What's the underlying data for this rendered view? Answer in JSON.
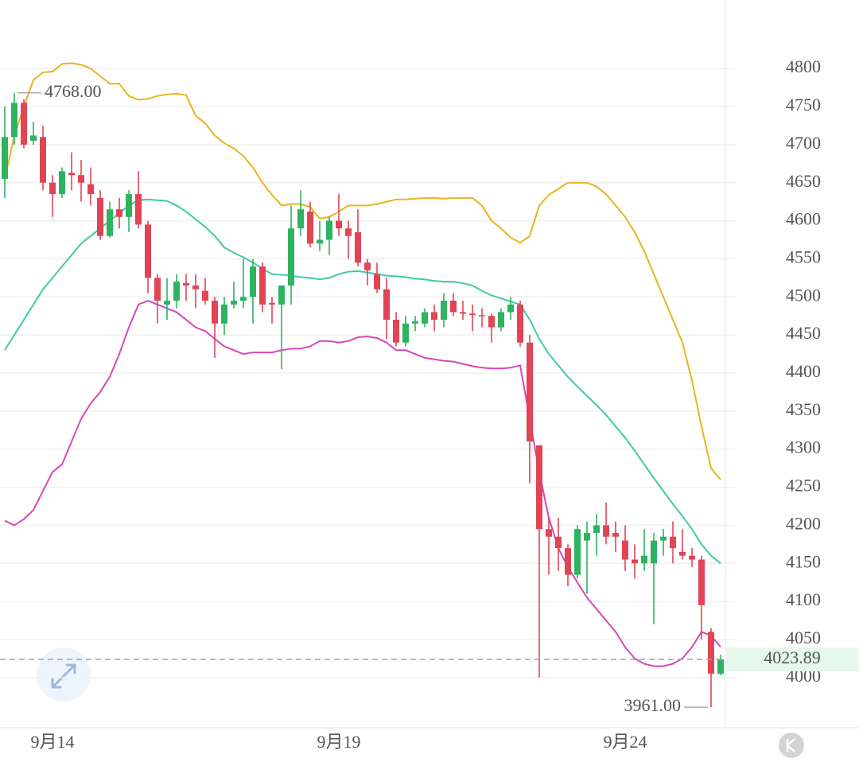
{
  "chart_data": {
    "type": "candlestick",
    "categories": [
      null,
      null,
      null,
      null,
      null,
      "9月14",
      null,
      null,
      null,
      null,
      null,
      null,
      null,
      null,
      null,
      null,
      null,
      null,
      null,
      null,
      null,
      null,
      null,
      null,
      null,
      null,
      null,
      null,
      null,
      null,
      null,
      null,
      null,
      null,
      null,
      "9月19",
      null,
      null,
      null,
      null,
      null,
      null,
      null,
      null,
      null,
      null,
      null,
      null,
      null,
      null,
      null,
      null,
      null,
      null,
      null,
      null,
      null,
      null,
      null,
      null,
      null,
      null,
      null,
      null,
      null,
      "9月24",
      null,
      null,
      null,
      null,
      null,
      null,
      null,
      null,
      null,
      null
    ],
    "open": [
      4655,
      4710,
      4755,
      4705,
      4710,
      4650,
      4635,
      4663,
      4660,
      4648,
      4630,
      4580,
      4615,
      4605,
      4635,
      4595,
      4525,
      4490,
      4495,
      4518,
      4515,
      4508,
      4495,
      4465,
      4490,
      4495,
      4500,
      4540,
      4492,
      4490,
      4515,
      4590,
      4612,
      4570,
      4575,
      4600,
      4590,
      4585,
      4545,
      4530,
      4510,
      4470,
      4440,
      4465,
      4465,
      4480,
      4470,
      4495,
      4480,
      4478,
      4476,
      4475,
      4460,
      4480,
      4490,
      4440,
      4305,
      4195,
      4185,
      4170,
      4135,
      4180,
      4190,
      4200,
      4190,
      4180,
      4155,
      4150,
      4150,
      4180,
      4185,
      4165,
      4160,
      4155,
      4060,
      4005
    ],
    "high": [
      4750,
      4768,
      4760,
      4730,
      4725,
      4660,
      4670,
      4690,
      4680,
      4670,
      4640,
      4625,
      4630,
      4640,
      4665,
      4600,
      4530,
      4525,
      4530,
      4530,
      4530,
      4525,
      4500,
      4500,
      4520,
      4550,
      4550,
      4545,
      4500,
      4515,
      4620,
      4640,
      4625,
      4600,
      4605,
      4635,
      4600,
      4615,
      4550,
      4545,
      4525,
      4480,
      4475,
      4475,
      4485,
      4490,
      4505,
      4505,
      4495,
      4490,
      4485,
      4478,
      4485,
      4500,
      4495,
      4450,
      4305,
      4210,
      4210,
      4175,
      4200,
      4205,
      4215,
      4230,
      4205,
      4200,
      4175,
      4195,
      4190,
      4195,
      4205,
      4195,
      4170,
      4160,
      4065,
      4030
    ],
    "low": [
      4630,
      4700,
      4695,
      4700,
      4640,
      4605,
      4630,
      4640,
      4625,
      4620,
      4575,
      4578,
      4590,
      4585,
      4590,
      4505,
      4465,
      4470,
      4485,
      4495,
      4485,
      4490,
      4420,
      4450,
      4485,
      4485,
      4465,
      4480,
      4465,
      4405,
      4490,
      4580,
      4565,
      4560,
      4555,
      4580,
      4550,
      4540,
      4515,
      4505,
      4445,
      4435,
      4435,
      4455,
      4460,
      4455,
      4460,
      4475,
      4470,
      4455,
      4460,
      4440,
      4455,
      4470,
      4435,
      4255,
      4000,
      4135,
      4140,
      4120,
      4130,
      4110,
      4160,
      4175,
      4165,
      4140,
      4130,
      4140,
      4070,
      4160,
      4150,
      4155,
      4145,
      4050,
      3961,
      4003
    ],
    "close": [
      4710,
      4755,
      4700,
      4712,
      4650,
      4635,
      4665,
      4660,
      4650,
      4635,
      4580,
      4615,
      4605,
      4635,
      4595,
      4525,
      4495,
      4495,
      4520,
      4515,
      4510,
      4495,
      4465,
      4490,
      4495,
      4500,
      4540,
      4490,
      4490,
      4515,
      4590,
      4615,
      4570,
      4575,
      4600,
      4590,
      4580,
      4545,
      4535,
      4510,
      4470,
      4440,
      4465,
      4468,
      4480,
      4470,
      4495,
      4480,
      4478,
      4476,
      4475,
      4460,
      4480,
      4490,
      4440,
      4310,
      4195,
      4185,
      4170,
      4135,
      4195,
      4190,
      4200,
      4185,
      4185,
      4155,
      4150,
      4160,
      4180,
      4185,
      4170,
      4160,
      4155,
      4095,
      4005,
      4023.89
    ],
    "up_color": "#2eb360",
    "down_color": "#e04455",
    "bands": [
      {
        "color": "#e8b420",
        "values": [
          4655,
          4712,
          4750,
          4785,
          4795,
          4796,
          4806,
          4807,
          4805,
          4800,
          4790,
          4780,
          4780,
          4764,
          4759,
          4760,
          4764,
          4766,
          4767,
          4765,
          4738,
          4728,
          4712,
          4702,
          4695,
          4685,
          4670,
          4650,
          4634,
          4620,
          4622,
          4622,
          4618,
          4603,
          4605,
          4612,
          4620,
          4620,
          4620,
          4622,
          4625,
          4628,
          4628,
          4629,
          4630,
          4630,
          4629,
          4630,
          4630,
          4630,
          4620,
          4600,
          4590,
          4578,
          4571,
          4580,
          4620,
          4634,
          4642,
          4650,
          4650,
          4650,
          4645,
          4635,
          4620,
          4605,
          4585,
          4560,
          4530,
          4500,
          4470,
          4440,
          4390,
          4330,
          4275,
          4260
        ]
      },
      {
        "color": "#3ccaa8",
        "values": [
          4430,
          4450,
          4470,
          4490,
          4510,
          4525,
          4540,
          4555,
          4570,
          4580,
          4590,
          4600,
          4610,
          4620,
          4627,
          4628,
          4627,
          4626,
          4620,
          4612,
          4602,
          4592,
          4580,
          4565,
          4558,
          4552,
          4545,
          4537,
          4530,
          4529,
          4528,
          4526,
          4525,
          4523,
          4525,
          4530,
          4533,
          4534,
          4532,
          4530,
          4528,
          4527,
          4526,
          4524,
          4523,
          4521,
          4520,
          4520,
          4518,
          4515,
          4508,
          4502,
          4498,
          4494,
          4490,
          4470,
          4445,
          4425,
          4410,
          4395,
          4382,
          4370,
          4358,
          4345,
          4330,
          4315,
          4298,
          4280,
          4262,
          4245,
          4228,
          4212,
          4195,
          4175,
          4160,
          4150
        ]
      },
      {
        "color": "#d548b8",
        "values": [
          4206,
          4200,
          4208,
          4220,
          4245,
          4270,
          4280,
          4310,
          4340,
          4360,
          4375,
          4395,
          4425,
          4460,
          4490,
          4495,
          4490,
          4485,
          4480,
          4470,
          4460,
          4455,
          4445,
          4435,
          4430,
          4425,
          4427,
          4427,
          4427,
          4430,
          4432,
          4432,
          4435,
          4442,
          4442,
          4440,
          4442,
          4447,
          4448,
          4446,
          4440,
          4430,
          4430,
          4425,
          4420,
          4418,
          4416,
          4415,
          4412,
          4409,
          4407,
          4406,
          4406,
          4407,
          4410,
          4340,
          4270,
          4210,
          4170,
          4145,
          4125,
          4105,
          4090,
          4075,
          4060,
          4040,
          4025,
          4018,
          4015,
          4015,
          4018,
          4025,
          4040,
          4060,
          4055,
          4040
        ]
      }
    ],
    "annotations": [
      {
        "value": 4768,
        "label": "4768.00"
      },
      {
        "value": 3961,
        "label": "3961.00"
      }
    ],
    "last_price": 4023.89,
    "ylim": [
      3934,
      4890
    ],
    "yticks": [
      4000,
      4050,
      4100,
      4150,
      4200,
      4250,
      4300,
      4350,
      4400,
      4450,
      4500,
      4550,
      4600,
      4650,
      4700,
      4750,
      4800
    ],
    "grid": true
  }
}
